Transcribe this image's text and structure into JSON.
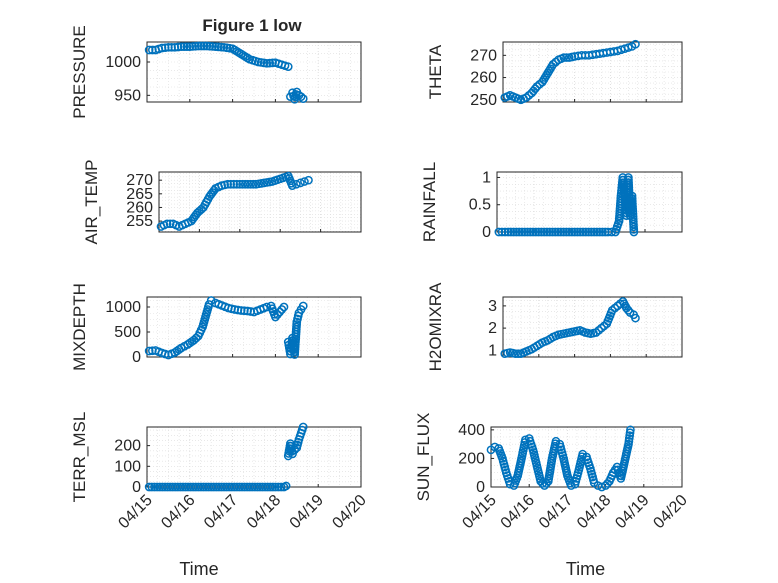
{
  "figure": {
    "title": "Figure 1 low"
  },
  "colors": {
    "marker": "#0072BD",
    "axis": "#262626",
    "grid": "#DCDCDC",
    "background": "#FFFFFF"
  },
  "chart_data": [
    {
      "type": "scatter",
      "id": "pressure",
      "title": "Figure 1 low",
      "ylabel": "PRESSURE",
      "xlabel": "",
      "xlim": [
        0,
        5
      ],
      "ylim": [
        940,
        1030
      ],
      "yticks": [
        950,
        1000
      ],
      "xticks": [
        0,
        1,
        2,
        3,
        4,
        5
      ],
      "grid": "on",
      "series": [
        {
          "x": [
            0.05,
            0.2,
            0.35,
            0.5,
            0.65,
            0.8,
            1.0,
            1.2,
            1.4,
            1.6,
            1.8,
            2.0,
            2.2,
            2.4,
            2.6,
            2.8,
            3.0,
            3.15,
            3.3
          ],
          "y": [
            1018,
            1018,
            1021,
            1022,
            1022,
            1023,
            1023,
            1024,
            1024,
            1023,
            1022,
            1020,
            1012,
            1004,
            1000,
            998,
            999,
            996,
            993
          ]
        },
        {
          "x": [
            3.35,
            3.4,
            3.45,
            3.5,
            3.55,
            3.6,
            3.65
          ],
          "y": [
            948,
            954,
            944,
            955,
            950,
            948,
            945
          ]
        }
      ]
    },
    {
      "type": "scatter",
      "id": "theta",
      "ylabel": "THETA",
      "xlabel": "",
      "xlim": [
        0,
        5
      ],
      "ylim": [
        249,
        276
      ],
      "yticks": [
        250,
        260,
        270
      ],
      "xticks": [
        0,
        1,
        2,
        3,
        4,
        5
      ],
      "grid": "on",
      "series": [
        {
          "x": [
            0.05,
            0.2,
            0.35,
            0.5,
            0.65,
            0.8,
            0.95,
            1.1,
            1.25,
            1.4,
            1.55,
            1.7,
            1.85,
            2.0,
            2.2,
            2.4,
            2.6,
            2.8,
            3.0,
            3.2,
            3.4,
            3.6,
            3.7
          ],
          "y": [
            251,
            252,
            251,
            250,
            251,
            253,
            256,
            258,
            262,
            266,
            268,
            269,
            269,
            269.5,
            270,
            270,
            270.5,
            271,
            271.5,
            272,
            273,
            274,
            275
          ]
        }
      ]
    },
    {
      "type": "scatter",
      "id": "air_temp",
      "ylabel": "AIR_TEMP",
      "xlabel": "",
      "xlim": [
        0,
        5
      ],
      "ylim": [
        251,
        273
      ],
      "yticks": [
        255,
        260,
        265,
        270
      ],
      "xticks": [
        0,
        1,
        2,
        3,
        4,
        5
      ],
      "grid": "on",
      "series": [
        {
          "x": [
            0.05,
            0.2,
            0.35,
            0.5,
            0.65,
            0.8,
            0.95,
            1.1,
            1.25,
            1.4,
            1.55,
            1.7,
            1.85,
            2.0,
            2.2,
            2.4,
            2.6,
            2.8,
            3.0,
            3.2,
            3.3,
            3.4,
            3.5,
            3.6,
            3.7
          ],
          "y": [
            253,
            254,
            254,
            253,
            254,
            255,
            258,
            260,
            264,
            267,
            268,
            268.5,
            268.5,
            268.5,
            268.5,
            268.5,
            269,
            269.5,
            270.5,
            271.5,
            268,
            268.5,
            269,
            269.5,
            270
          ]
        }
      ]
    },
    {
      "type": "scatter",
      "id": "rainfall",
      "ylabel": "RAINFALL",
      "xlabel": "",
      "xlim": [
        0,
        5
      ],
      "ylim": [
        0,
        1.1
      ],
      "yticks": [
        0,
        0.5,
        1
      ],
      "xticks": [
        0,
        1,
        2,
        3,
        4,
        5
      ],
      "grid": "on",
      "series": [
        {
          "x": [
            0.05,
            0.3,
            0.6,
            0.9,
            1.2,
            1.5,
            1.8,
            2.1,
            2.4,
            2.7,
            3.0,
            3.2,
            3.3,
            3.35,
            3.4,
            3.45,
            3.5,
            3.55,
            3.6,
            3.65,
            3.7
          ],
          "y": [
            0,
            0,
            0,
            0,
            0,
            0,
            0,
            0,
            0,
            0,
            0,
            0,
            0.2,
            0.66,
            1.0,
            0.66,
            0.3,
            1.0,
            0.3,
            0.66,
            0
          ]
        }
      ]
    },
    {
      "type": "scatter",
      "id": "mixdepth",
      "ylabel": "MIXDEPTH",
      "xlabel": "",
      "xlim": [
        0,
        5
      ],
      "ylim": [
        0,
        1200
      ],
      "yticks": [
        0,
        500,
        1000
      ],
      "xticks": [
        0,
        1,
        2,
        3,
        4,
        5
      ],
      "grid": "on",
      "series": [
        {
          "x": [
            0.05,
            0.2,
            0.35,
            0.5,
            0.65,
            0.8,
            0.95,
            1.1,
            1.2,
            1.3,
            1.4,
            1.45,
            1.5,
            1.6,
            1.75,
            1.9,
            2.05,
            2.2,
            2.35,
            2.5,
            2.65,
            2.8,
            2.9,
            3.0,
            3.1,
            3.2
          ],
          "y": [
            120,
            130,
            80,
            40,
            90,
            180,
            250,
            340,
            420,
            600,
            900,
            1050,
            1130,
            1080,
            1030,
            980,
            950,
            930,
            920,
            900,
            950,
            1000,
            1020,
            800,
            900,
            1000
          ]
        },
        {
          "x": [
            3.3,
            3.35,
            3.4,
            3.45,
            3.5,
            3.55,
            3.6,
            3.65
          ],
          "y": [
            300,
            60,
            380,
            50,
            700,
            880,
            950,
            1020
          ]
        }
      ]
    },
    {
      "type": "scatter",
      "id": "h2omixra",
      "ylabel": "H2OMIXRA",
      "xlabel": "",
      "xlim": [
        0,
        5
      ],
      "ylim": [
        0.7,
        3.4
      ],
      "yticks": [
        1,
        2,
        3
      ],
      "xticks": [
        0,
        1,
        2,
        3,
        4,
        5
      ],
      "grid": "on",
      "series": [
        {
          "x": [
            0.05,
            0.2,
            0.35,
            0.5,
            0.65,
            0.8,
            0.95,
            1.1,
            1.25,
            1.4,
            1.55,
            1.7,
            1.85,
            2.0,
            2.15,
            2.3,
            2.45,
            2.6,
            2.75,
            2.9,
            3.05,
            3.2,
            3.35,
            3.45,
            3.55,
            3.65,
            3.7
          ],
          "y": [
            0.85,
            0.9,
            0.85,
            0.85,
            0.95,
            1.05,
            1.2,
            1.35,
            1.45,
            1.6,
            1.7,
            1.75,
            1.8,
            1.85,
            1.9,
            1.8,
            1.75,
            1.8,
            2.0,
            2.2,
            2.8,
            3.0,
            3.2,
            2.9,
            2.7,
            2.6,
            2.45
          ]
        }
      ]
    },
    {
      "type": "scatter",
      "id": "terr_msl",
      "ylabel": "TERR_MSL",
      "xlabel": "Time",
      "xlim": [
        0,
        5
      ],
      "ylim": [
        0,
        290
      ],
      "yticks": [
        0,
        100,
        200
      ],
      "xticks": [
        0,
        1,
        2,
        3,
        4,
        5
      ],
      "xticklabels": [
        "04/15",
        "04/16",
        "04/17",
        "04/18",
        "04/19",
        "04/20"
      ],
      "grid": "on",
      "series": [
        {
          "x": [
            0.05,
            0.3,
            0.6,
            0.9,
            1.2,
            1.5,
            1.8,
            2.1,
            2.4,
            2.7,
            3.0,
            3.2,
            3.25
          ],
          "y": [
            0,
            0,
            0,
            0,
            0,
            0,
            0,
            0,
            0,
            0,
            0,
            0,
            5
          ]
        },
        {
          "x": [
            3.3,
            3.35,
            3.4,
            3.45,
            3.5,
            3.55,
            3.6,
            3.65
          ],
          "y": [
            150,
            210,
            160,
            180,
            190,
            230,
            260,
            290
          ]
        }
      ]
    },
    {
      "type": "scatter",
      "id": "sun_flux",
      "ylabel": "SUN_FLUX",
      "xlabel": "Time",
      "xlim": [
        0,
        5
      ],
      "ylim": [
        0,
        420
      ],
      "yticks": [
        0,
        200,
        400
      ],
      "xticks": [
        0,
        1,
        2,
        3,
        4,
        5
      ],
      "xticklabels": [
        "04/15",
        "04/16",
        "04/17",
        "04/18",
        "04/19",
        "04/20"
      ],
      "grid": "on",
      "series": [
        {
          "x": [
            0.0,
            0.1,
            0.2,
            0.3,
            0.4,
            0.5,
            0.6,
            0.7,
            0.8,
            0.9,
            1.0,
            1.1,
            1.2,
            1.3,
            1.4,
            1.5,
            1.6,
            1.7,
            1.8,
            1.9,
            2.0,
            2.1,
            2.2,
            2.3,
            2.4,
            2.5,
            2.6,
            2.7,
            2.8,
            2.9,
            3.0,
            3.1,
            3.2,
            3.3,
            3.4,
            3.5,
            3.6,
            3.65
          ],
          "y": [
            260,
            280,
            270,
            200,
            100,
            20,
            10,
            80,
            200,
            330,
            340,
            260,
            150,
            40,
            10,
            40,
            200,
            320,
            300,
            200,
            80,
            10,
            20,
            120,
            230,
            210,
            130,
            30,
            10,
            0,
            10,
            40,
            100,
            140,
            60,
            180,
            300,
            400
          ]
        }
      ]
    }
  ]
}
